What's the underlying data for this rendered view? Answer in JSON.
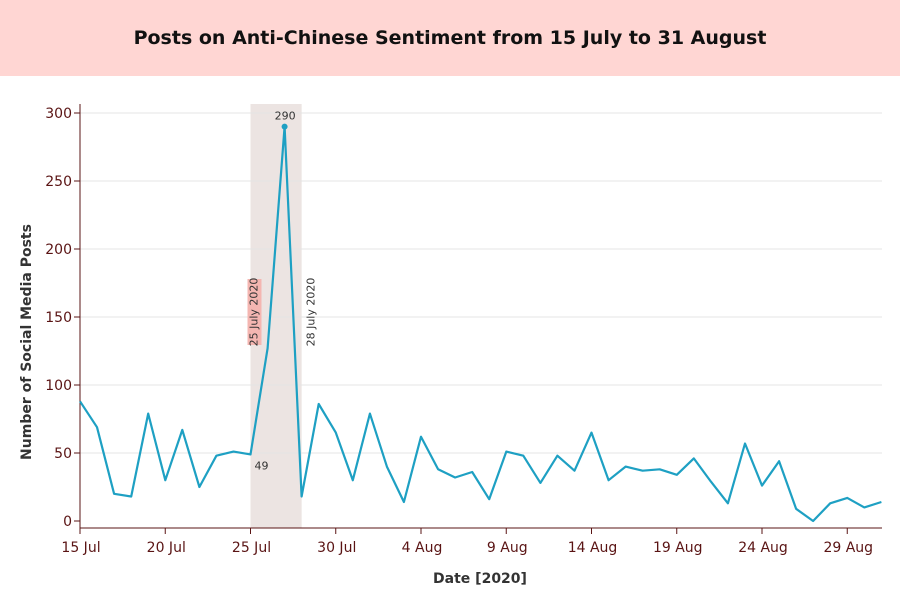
{
  "title": "Posts on Anti-Chinese Sentiment from 15 July to 31 August",
  "colors": {
    "line": "#1ea0c3",
    "highlight": "#ece4e2",
    "title_bg": "#ffd6d3",
    "axis_text": "#5a1414",
    "label_bg": "#f4b6b1"
  },
  "chart_data": {
    "type": "line",
    "xlabel": "Date [2020]",
    "ylabel": "Number of Social Media Posts",
    "ylim": [
      0,
      300
    ],
    "yticks": [
      0,
      50,
      100,
      150,
      200,
      250,
      300
    ],
    "x_start": "2020-07-15",
    "x_end": "2020-08-31",
    "xticks": [
      {
        "day": 0,
        "label": "15 Jul"
      },
      {
        "day": 5,
        "label": "20 Jul"
      },
      {
        "day": 10,
        "label": "25 Jul"
      },
      {
        "day": 15,
        "label": "30 Jul"
      },
      {
        "day": 20,
        "label": "4 Aug"
      },
      {
        "day": 25,
        "label": "9 Aug"
      },
      {
        "day": 30,
        "label": "14 Aug"
      },
      {
        "day": 35,
        "label": "19 Aug"
      },
      {
        "day": 40,
        "label": "24 Aug"
      },
      {
        "day": 45,
        "label": "29 Aug"
      }
    ],
    "series": [
      {
        "name": "Posts",
        "values": [
          88,
          69,
          20,
          18,
          79,
          30,
          67,
          25,
          48,
          51,
          49,
          127,
          290,
          18,
          86,
          65,
          30,
          79,
          40,
          14,
          62,
          38,
          32,
          36,
          16,
          51,
          48,
          28,
          48,
          37,
          65,
          30,
          40,
          37,
          38,
          34,
          46,
          29,
          13,
          57,
          26,
          44,
          9,
          0,
          13,
          17,
          10,
          14
        ]
      }
    ],
    "highlight": {
      "start_day": 10,
      "end_day": 13
    },
    "annotations": [
      {
        "day": 12,
        "value": 290,
        "text": "290"
      },
      {
        "day": 10,
        "value": 49,
        "text": "49"
      },
      {
        "day": 10,
        "text": "25 July 2020"
      },
      {
        "day": 13,
        "text": "28 July 2020"
      }
    ]
  }
}
